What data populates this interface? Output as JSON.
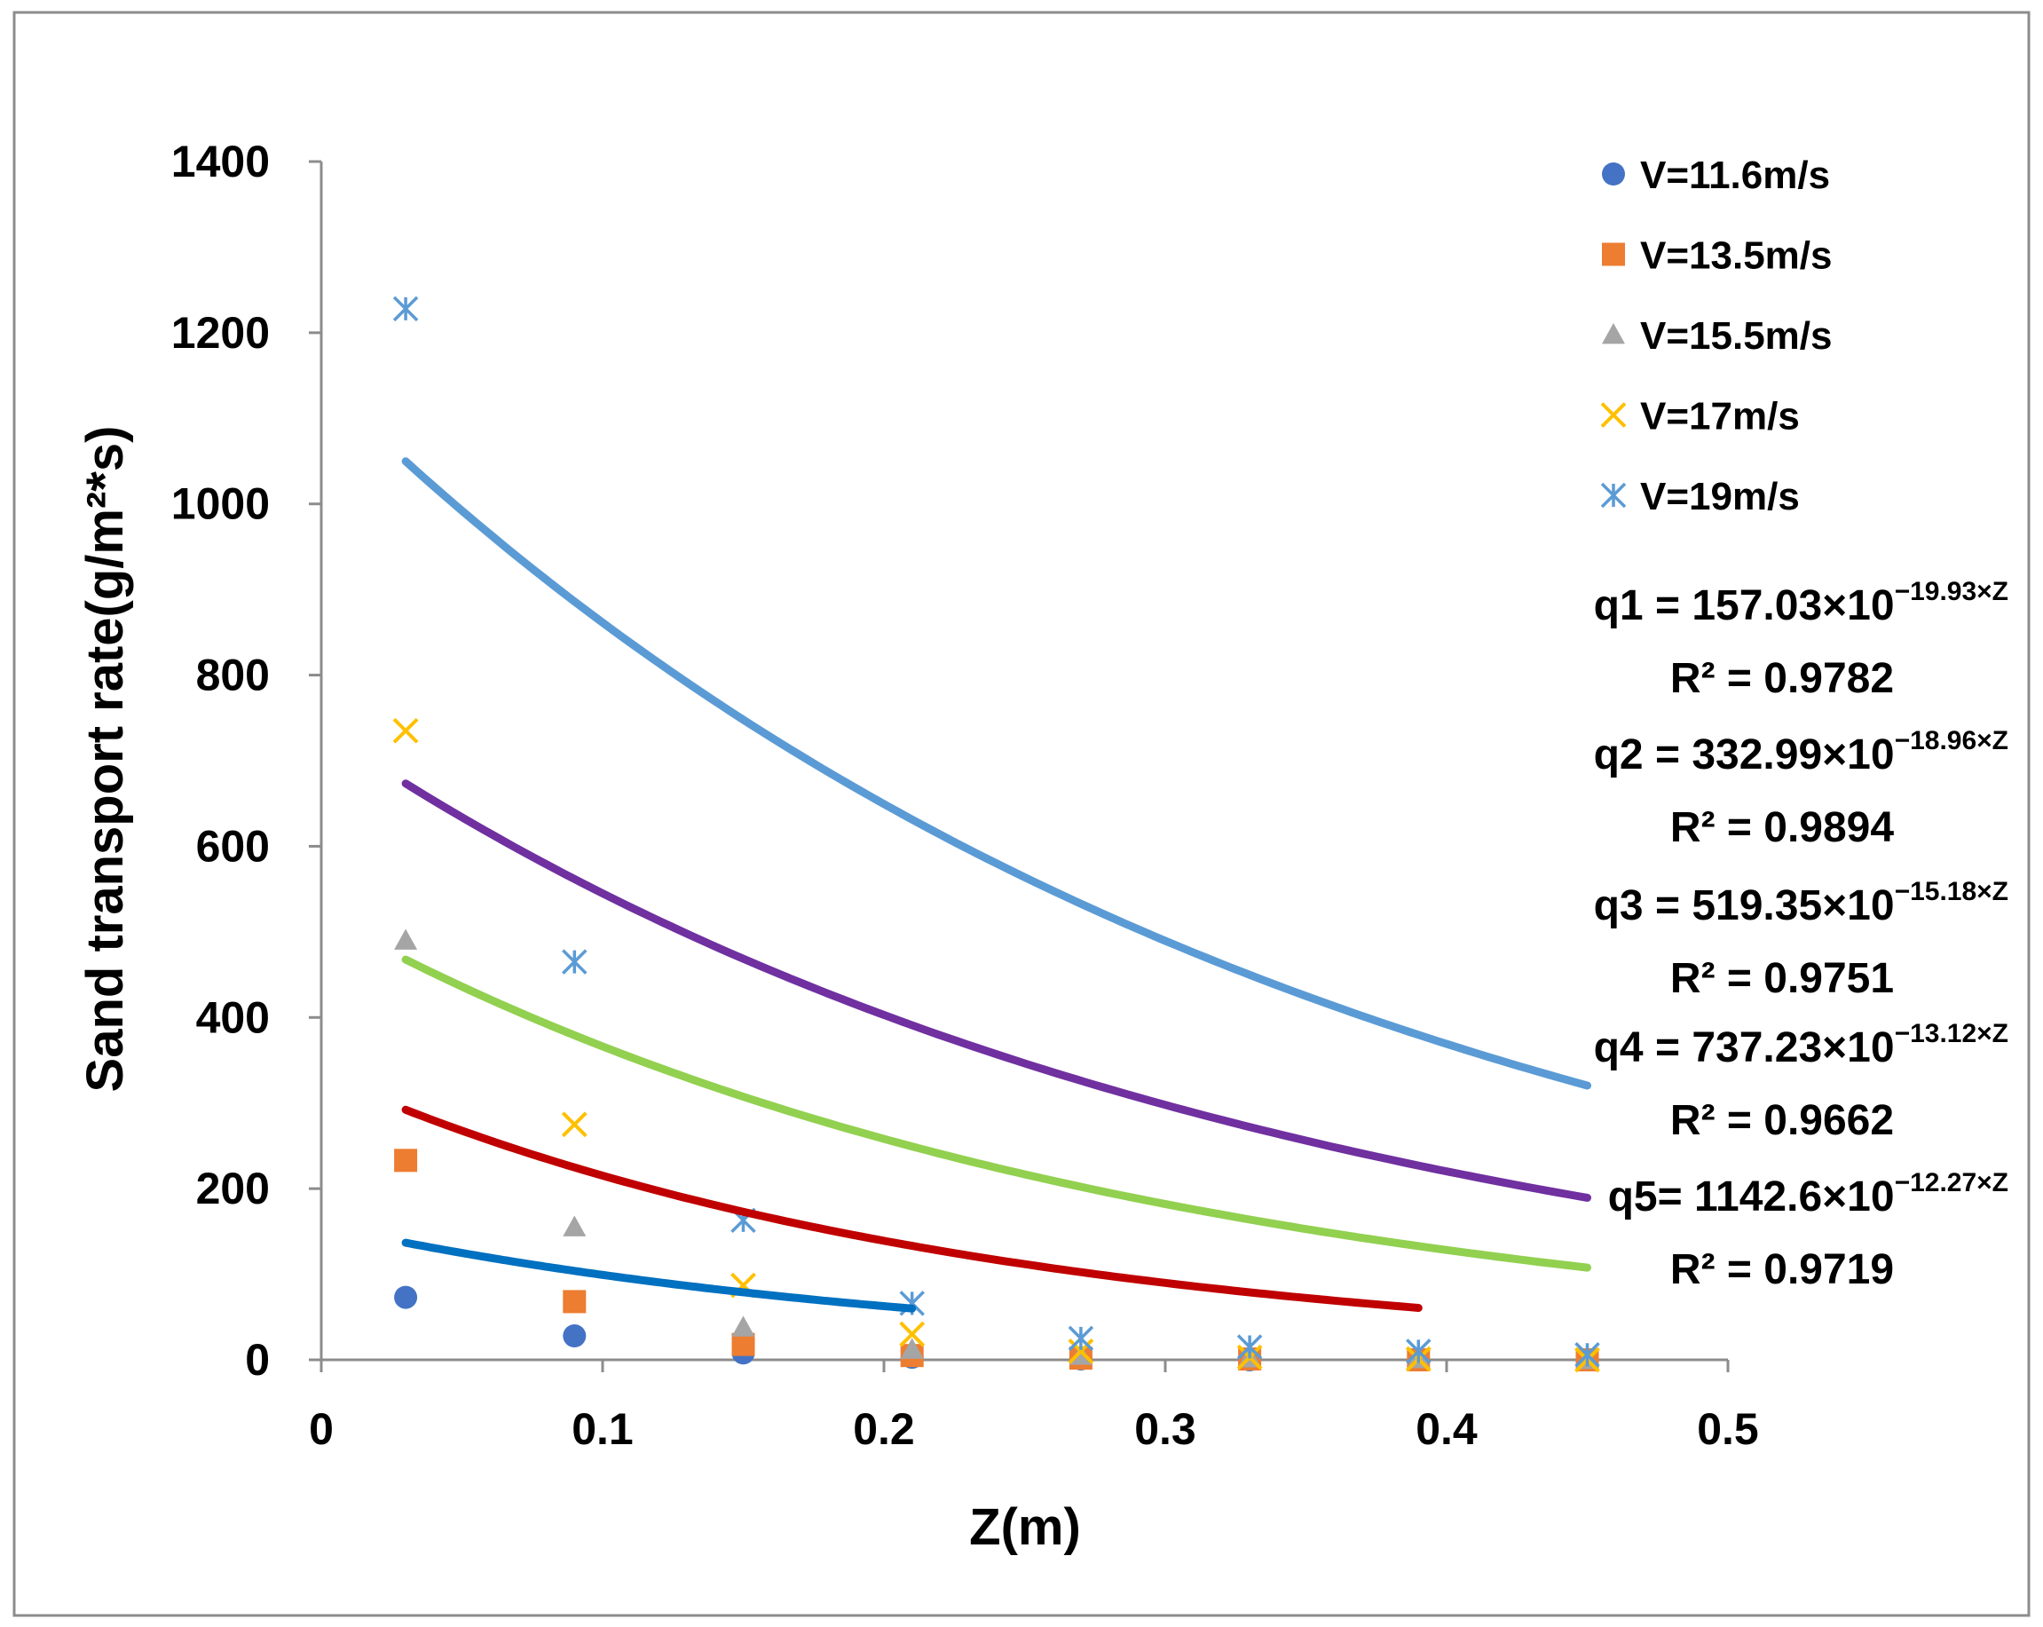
{
  "chart_data": {
    "type": "scatter",
    "title": "",
    "xlabel": "Z(m)",
    "ylabel": "Sand transport rate(g/m²*s)",
    "xlim": [
      0,
      0.5
    ],
    "ylim": [
      0,
      1400
    ],
    "x_ticks": [
      "0",
      "0.1",
      "0.2",
      "0.3",
      "0.4",
      "0.5"
    ],
    "y_ticks": [
      "0",
      "200",
      "400",
      "600",
      "800",
      "1000",
      "1200",
      "1400"
    ],
    "grid": false,
    "legend_position": "top-right",
    "series": [
      {
        "name": "V=11.6m/s",
        "marker": "circle",
        "color": "#4472C4",
        "x": [
          0.03,
          0.09,
          0.15,
          0.21,
          0.27,
          0.33,
          0.39,
          0.45
        ],
        "y": [
          73,
          28,
          8,
          3,
          1,
          0,
          0,
          0
        ],
        "trend": {
          "a": 157.03,
          "b": 19.93,
          "color": "#0070C0",
          "x_range": [
            0.03,
            0.21
          ]
        }
      },
      {
        "name": "V=13.5m/s",
        "marker": "square",
        "color": "#ED7D31",
        "x": [
          0.03,
          0.09,
          0.15,
          0.21,
          0.27,
          0.33,
          0.39,
          0.45
        ],
        "y": [
          233,
          68,
          18,
          5,
          2,
          1,
          0,
          0
        ],
        "trend": {
          "a": 332.99,
          "b": 18.96,
          "color": "#C00000",
          "x_range": [
            0.03,
            0.39
          ]
        }
      },
      {
        "name": "V=15.5m/s",
        "marker": "triangle",
        "color": "#A5A5A5",
        "x": [
          0.03,
          0.09,
          0.15,
          0.21,
          0.27,
          0.33,
          0.39,
          0.45
        ],
        "y": [
          490,
          155,
          38,
          12,
          5,
          2,
          1,
          0
        ],
        "trend": {
          "a": 519.35,
          "b": 15.18,
          "color": "#92D050",
          "x_range": [
            0.03,
            0.45
          ]
        }
      },
      {
        "name": "V=17m/s",
        "marker": "x",
        "color": "#FFC000",
        "x": [
          0.03,
          0.09,
          0.15,
          0.21,
          0.27,
          0.33,
          0.39,
          0.45
        ],
        "y": [
          735,
          275,
          87,
          30,
          10,
          3,
          1,
          0
        ],
        "trend": {
          "a": 737.23,
          "b": 13.12,
          "color": "#7030A0",
          "x_range": [
            0.03,
            0.45
          ]
        }
      },
      {
        "name": "V=19m/s",
        "marker": "star",
        "color": "#5B9BD5",
        "x": [
          0.03,
          0.09,
          0.15,
          0.21,
          0.27,
          0.33,
          0.39,
          0.45
        ],
        "y": [
          1228,
          465,
          163,
          66,
          25,
          15,
          10,
          6
        ],
        "trend": {
          "a": 1142.6,
          "b": 12.27,
          "color": "#5B9BD5",
          "x_range": [
            0.03,
            0.45
          ]
        }
      }
    ],
    "annotations": [
      {
        "lhs": "q1 = 157.03×10",
        "exp": "−19.93×Z",
        "r2": "R² = 0.9782"
      },
      {
        "lhs": "q2 = 332.99×10",
        "exp": "−18.96×Z",
        "r2": "R² = 0.9894"
      },
      {
        "lhs": "q3 = 519.35×10",
        "exp": "−15.18×Z",
        "r2": "R² = 0.9751"
      },
      {
        "lhs": "q4 = 737.23×10",
        "exp": "−13.12×Z",
        "r2": "R² = 0.9662"
      },
      {
        "lhs": "q5= 1142.6×10",
        "exp": "−12.27×Z",
        "r2": "R² = 0.9719"
      }
    ]
  }
}
